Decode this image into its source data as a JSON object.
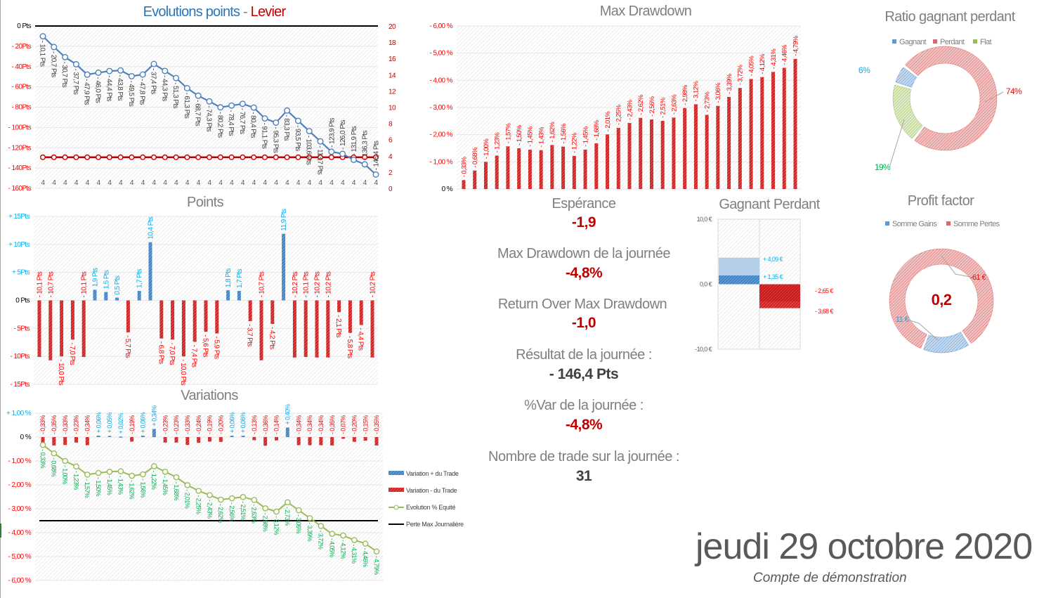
{
  "colors": {
    "blue": "#2e75b6",
    "lightblue": "#00b0f0",
    "red": "#c00000",
    "brightred": "#ff0000",
    "green": "#00b050",
    "olive": "#9bbb59",
    "gray": "#7f7f7f"
  },
  "chart_data": [
    {
      "id": "evolution",
      "type": "line",
      "title_part1": "Evolutions points",
      "title_sep": " - ",
      "title_part2": "Levier",
      "ylim": [
        -160,
        0
      ],
      "y2lim": [
        0,
        20
      ],
      "yticks": [
        0,
        -20,
        -40,
        -60,
        -80,
        -100,
        -120,
        -140,
        -160
      ],
      "ytick_labels": [
        "0 Pts",
        "- 20Pts",
        "- 40Pts",
        "- 60Pts",
        "- 80Pts",
        "- 100Pts",
        "- 120Pts",
        "- 140Pts",
        "- 160Pts"
      ],
      "y2ticks": [
        0,
        2,
        4,
        6,
        8,
        10,
        12,
        14,
        16,
        18,
        20
      ],
      "series": [
        {
          "key": "points",
          "values": [
            -10.1,
            -20.7,
            -30.7,
            -37.7,
            -47.9,
            -46.0,
            -44.4,
            -43.8,
            -49.5,
            -47.8,
            -37.4,
            -44.3,
            -51.3,
            -61.3,
            -68.7,
            -74.3,
            -80.2,
            -78.4,
            -76.7,
            -80.4,
            -91.1,
            -95.3,
            -83.3,
            -93.5,
            -103.6,
            -113.7,
            -123.9,
            -126.0,
            -131.9,
            -136.3,
            -146.4
          ]
        },
        {
          "key": "levier",
          "values": [
            4,
            4,
            4,
            4,
            4,
            4,
            4,
            4,
            4,
            4,
            4,
            4,
            4,
            4,
            4,
            4,
            4,
            4,
            4,
            4,
            4,
            4,
            4,
            4,
            4,
            4,
            4,
            4,
            4,
            4,
            4
          ]
        }
      ],
      "zero_line": true,
      "grid": true
    },
    {
      "id": "points",
      "type": "bar",
      "title": "Points",
      "ylim": [
        -15,
        15
      ],
      "yticks": [
        15,
        10,
        5,
        0,
        -5,
        -10,
        -15
      ],
      "ytick_labels": [
        "+ 15Pts",
        "+ 10Pts",
        "+ 5Pts",
        "0 Pts",
        "- 5Pts",
        "- 10Pts",
        "- 15Pts"
      ],
      "values": [
        -10.1,
        -10.7,
        -10.0,
        -7.0,
        -10.1,
        1.9,
        1.5,
        0.5,
        -5.7,
        1.7,
        10.4,
        -6.8,
        -7.0,
        -10.0,
        -7.4,
        -5.6,
        -5.9,
        1.8,
        1.7,
        -3.7,
        -10.7,
        -4.2,
        11.9,
        -10.2,
        -10.1,
        -10.2,
        -10.2,
        -2.1,
        -5.8,
        -4.4,
        -10.2
      ],
      "grid": true
    },
    {
      "id": "variations",
      "type": "bar+line",
      "title": "Variations",
      "ylim": [
        -6,
        1
      ],
      "yticks": [
        1,
        0,
        -1,
        -2,
        -3,
        -4,
        -5,
        -6
      ],
      "ytick_labels": [
        "+ 1,00 %",
        "0 %",
        "- 1,00 %",
        "- 2,00 %",
        "- 3,00 %",
        "- 4,00 %",
        "- 5,00 %",
        "- 6,00 %"
      ],
      "trade_variation": [
        -0.33,
        -0.35,
        -0.33,
        -0.23,
        -0.34,
        0.06,
        0.05,
        0.02,
        -0.19,
        0.06,
        0.34,
        -0.23,
        -0.23,
        -0.33,
        -0.24,
        -0.19,
        -0.2,
        0.06,
        0.06,
        -0.13,
        -0.36,
        -0.14,
        0.4,
        -0.34,
        -0.34,
        -0.34,
        -0.35,
        -0.07,
        -0.2,
        -0.15,
        -0.35
      ],
      "equity": [
        -0.33,
        -0.68,
        -1.0,
        -1.23,
        -1.57,
        -1.5,
        -1.45,
        -1.43,
        -1.62,
        -1.56,
        -1.22,
        -1.45,
        -1.68,
        -2.01,
        -2.25,
        -2.43,
        -2.62,
        -2.56,
        -2.51,
        -2.63,
        -2.98,
        -3.12,
        -2.73,
        -3.06,
        -3.39,
        -3.72,
        -4.05,
        -4.12,
        -4.31,
        -4.46,
        -4.79
      ],
      "max_loss": -3.5,
      "legend": [
        "Variation + du Trade",
        "Variation - du Trade",
        "Evolution % Equité",
        "Perte Max Journalière"
      ],
      "legend_placement": "right",
      "grid": true
    },
    {
      "id": "drawdown",
      "type": "bar",
      "title": "Max Drawdown",
      "ylim": [
        0,
        -6
      ],
      "yticks": [
        -6,
        -5,
        -4,
        -3,
        -2,
        -1,
        0
      ],
      "ytick_labels": [
        "- 6,00 %",
        "- 5,00 %",
        "- 4,00 %",
        "- 3,00 %",
        "- 2,00 %",
        "- 1,00 %",
        "0 %"
      ],
      "values": [
        -0.33,
        -0.68,
        -1.0,
        -1.23,
        -1.57,
        -1.5,
        -1.45,
        -1.43,
        -1.62,
        -1.56,
        -1.22,
        -1.45,
        -1.68,
        -2.01,
        -2.25,
        -2.43,
        -2.62,
        -2.56,
        -2.51,
        -2.63,
        -2.98,
        -3.12,
        -2.73,
        -3.06,
        -3.39,
        -3.72,
        -4.05,
        -4.12,
        -4.31,
        -4.46,
        -4.79
      ],
      "grid": true
    },
    {
      "id": "gagnant_perdant",
      "type": "bar",
      "title": "Gagnant Perdant",
      "ylim": [
        -10,
        10
      ],
      "ytick_labels": [
        "10,0 €",
        "0,0 €",
        "-10,0 €"
      ],
      "gain_values": [
        4.09,
        1.35
      ],
      "gain_labels": [
        "+ 4,09 €",
        "+ 1,35 €"
      ],
      "loss_values": [
        -2.65,
        -3.68
      ],
      "loss_labels": [
        "- 2,65 €",
        "- 3,68 €"
      ]
    },
    {
      "id": "ratio",
      "type": "pie",
      "title": "Ratio gagnant perdant",
      "legend": [
        "Gagnant",
        "Perdant",
        "Flat"
      ],
      "values": [
        6,
        74,
        19
      ],
      "labels": [
        "6%",
        "74%",
        "19%"
      ],
      "legend_placement": "top"
    },
    {
      "id": "profit_factor",
      "type": "pie",
      "title": "Profit factor",
      "legend": [
        "Somme Gains",
        "Somme Pertes"
      ],
      "values": [
        11,
        61
      ],
      "labels": [
        "11 €",
        "-61 €"
      ],
      "center_value": "0,2",
      "legend_placement": "top"
    }
  ],
  "stats": [
    {
      "label": "Espérance",
      "value": "-1,9"
    },
    {
      "label": "Max Drawdown de la journée",
      "value": "-4,8%"
    },
    {
      "label": "Return Over Max Drawdown",
      "value": "-1,0"
    },
    {
      "label": "Résultat de la journée :",
      "value": "- 146,4 Pts"
    },
    {
      "label": "%Var de la journée :",
      "value": "-4,8%"
    },
    {
      "label": "Nombre de trade sur la journée :",
      "value": "31"
    }
  ],
  "footer": {
    "date": "jeudi 29 octobre 2020",
    "account": "Compte de démonstration"
  }
}
